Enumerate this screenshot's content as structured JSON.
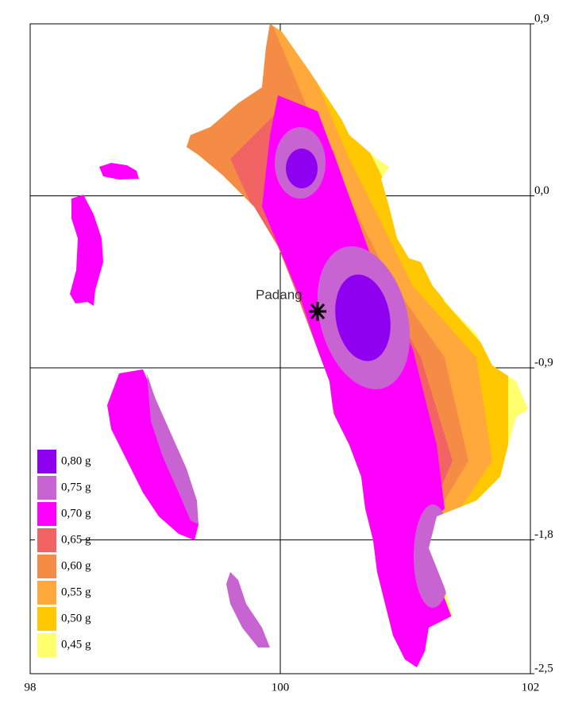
{
  "map": {
    "marker_label": "Padang",
    "xlim": [
      98,
      102
    ],
    "ylim": [
      -2.5,
      0.9
    ],
    "xticks": [
      98,
      100,
      102
    ],
    "yticks": [
      {
        "value": 0.9,
        "label": "0,9"
      },
      {
        "value": 0.0,
        "label": "0,0"
      },
      {
        "value": -0.9,
        "label": "-0,9"
      },
      {
        "value": -1.8,
        "label": "-1,8"
      },
      {
        "value": -2.5,
        "label": "-2,5"
      }
    ],
    "legend": [
      {
        "label": "0,80 g",
        "color": "#9000f0"
      },
      {
        "label": "0,75 g",
        "color": "#c864d2"
      },
      {
        "label": "0,70 g",
        "color": "#ff00ff"
      },
      {
        "label": "0,65 g",
        "color": "#f26464"
      },
      {
        "label": "0,60 g",
        "color": "#f58c46"
      },
      {
        "label": "0,55 g",
        "color": "#ffa83c"
      },
      {
        "label": "0,50 g",
        "color": "#ffc800"
      },
      {
        "label": "0,45 g",
        "color": "#ffff6e"
      }
    ]
  }
}
